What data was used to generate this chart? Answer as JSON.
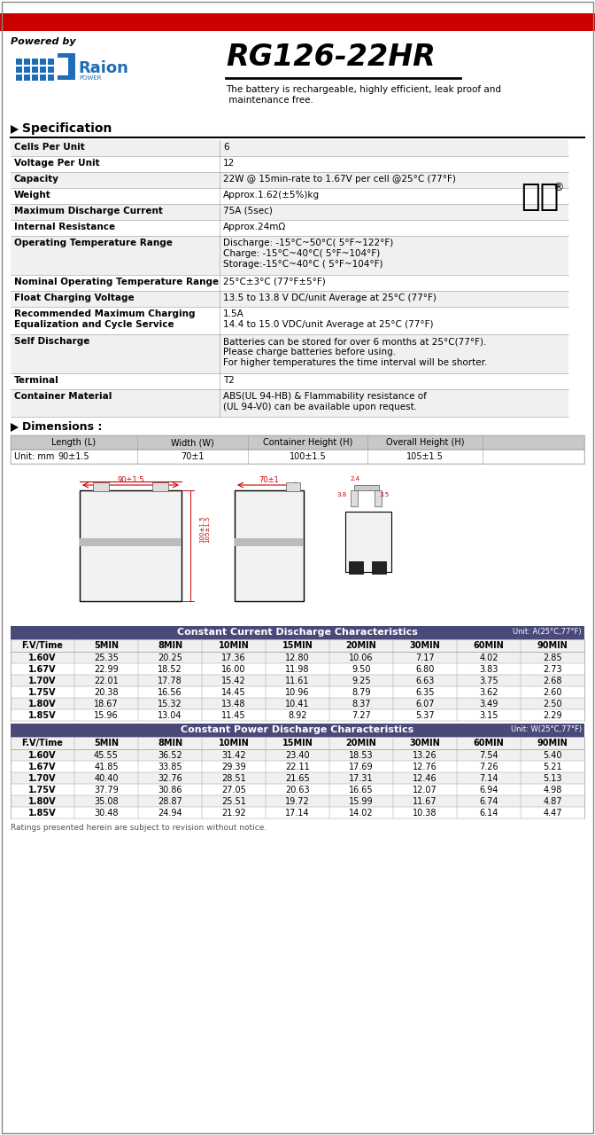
{
  "title": "RG126-22HR",
  "powered_by": "Powered by",
  "description1": "The battery is rechargeable, highly efficient, leak proof and",
  "description2": " maintenance free.",
  "spec_title": "Specification",
  "spec_rows": [
    [
      "Cells Per Unit",
      "6"
    ],
    [
      "Voltage Per Unit",
      "12"
    ],
    [
      "Capacity",
      "22W @ 15min-rate to 1.67V per cell @25°C (77°F)"
    ],
    [
      "Weight",
      "Approx.1.62(±5%)kg"
    ],
    [
      "Maximum Discharge Current",
      "75A (5sec)"
    ],
    [
      "Internal Resistance",
      "Approx.24mΩ"
    ],
    [
      "Operating Temperature Range",
      "Discharge: -15°C~50°C( 5°F~122°F)\nCharge: -15°C~40°C( 5°F~104°F)\nStorage:-15°C~40°C ( 5°F~104°F)"
    ],
    [
      "Nominal Operating Temperature Range",
      "25°C±3°C (77°F±5°F)"
    ],
    [
      "Float Charging Voltage",
      "13.5 to 13.8 V DC/unit Average at 25°C (77°F)"
    ],
    [
      "Recommended Maximum Charging\nEqualization and Cycle Service",
      "1.5A\n14.4 to 15.0 VDC/unit Average at 25°C (77°F)"
    ],
    [
      "Self Discharge",
      "Batteries can be stored for over 6 months at 25°C(77°F).\nPlease charge batteries before using.\nFor higher temperatures the time interval will be shorter."
    ],
    [
      "Terminal",
      "T2"
    ],
    [
      "Container Material",
      "ABS(UL 94-HB) & Flammability resistance of\n(UL 94-V0) can be available upon request."
    ]
  ],
  "dim_title": "Dimensions :",
  "dim_unit": "Unit: mm",
  "dim_headers": [
    "Length (L)",
    "Width (W)",
    "Container Height (H)",
    "Overall Height (H)"
  ],
  "dim_values": [
    "90±1.5",
    "70±1",
    "100±1.5",
    "105±1.5"
  ],
  "cc_title": "Constant Current Discharge Characteristics",
  "cc_unit": "Unit: A(25°C,77°F)",
  "cc_headers": [
    "F.V/Time",
    "5MIN",
    "8MIN",
    "10MIN",
    "15MIN",
    "20MIN",
    "30MIN",
    "60MIN",
    "90MIN"
  ],
  "cc_data": [
    [
      "1.60V",
      "25.35",
      "20.25",
      "17.36",
      "12.80",
      "10.06",
      "7.17",
      "4.02",
      "2.85"
    ],
    [
      "1.67V",
      "22.99",
      "18.52",
      "16.00",
      "11.98",
      "9.50",
      "6.80",
      "3.83",
      "2.73"
    ],
    [
      "1.70V",
      "22.01",
      "17.78",
      "15.42",
      "11.61",
      "9.25",
      "6.63",
      "3.75",
      "2.68"
    ],
    [
      "1.75V",
      "20.38",
      "16.56",
      "14.45",
      "10.96",
      "8.79",
      "6.35",
      "3.62",
      "2.60"
    ],
    [
      "1.80V",
      "18.67",
      "15.32",
      "13.48",
      "10.41",
      "8.37",
      "6.07",
      "3.49",
      "2.50"
    ],
    [
      "1.85V",
      "15.96",
      "13.04",
      "11.45",
      "8.92",
      "7.27",
      "5.37",
      "3.15",
      "2.29"
    ]
  ],
  "cp_title": "Constant Power Discharge Characteristics",
  "cp_unit": "Unit: W(25°C,77°F)",
  "cp_headers": [
    "F.V/Time",
    "5MIN",
    "8MIN",
    "10MIN",
    "15MIN",
    "20MIN",
    "30MIN",
    "60MIN",
    "90MIN"
  ],
  "cp_data": [
    [
      "1.60V",
      "45.55",
      "36.52",
      "31.42",
      "23.40",
      "18.53",
      "13.26",
      "7.54",
      "5.40"
    ],
    [
      "1.67V",
      "41.85",
      "33.85",
      "29.39",
      "22.11",
      "17.69",
      "12.76",
      "7.26",
      "5.21"
    ],
    [
      "1.70V",
      "40.40",
      "32.76",
      "28.51",
      "21.65",
      "17.31",
      "12.46",
      "7.14",
      "5.13"
    ],
    [
      "1.75V",
      "37.79",
      "30.86",
      "27.05",
      "20.63",
      "16.65",
      "12.07",
      "6.94",
      "4.98"
    ],
    [
      "1.80V",
      "35.08",
      "28.87",
      "25.51",
      "19.72",
      "15.99",
      "11.67",
      "6.74",
      "4.87"
    ],
    [
      "1.85V",
      "30.48",
      "24.94",
      "21.92",
      "17.14",
      "14.02",
      "10.38",
      "6.14",
      "4.47"
    ]
  ],
  "footer": "Ratings presented herein are subject to revision without notice.",
  "red_bar_color": "#CC0000",
  "table_header_bg": "#4A4A7A",
  "white": "#FFFFFF",
  "black": "#000000",
  "light_gray": "#F0F0F0",
  "dim_header_bg": "#C8C8C8",
  "border_color": "#999999",
  "blue": "#1E6DB5"
}
